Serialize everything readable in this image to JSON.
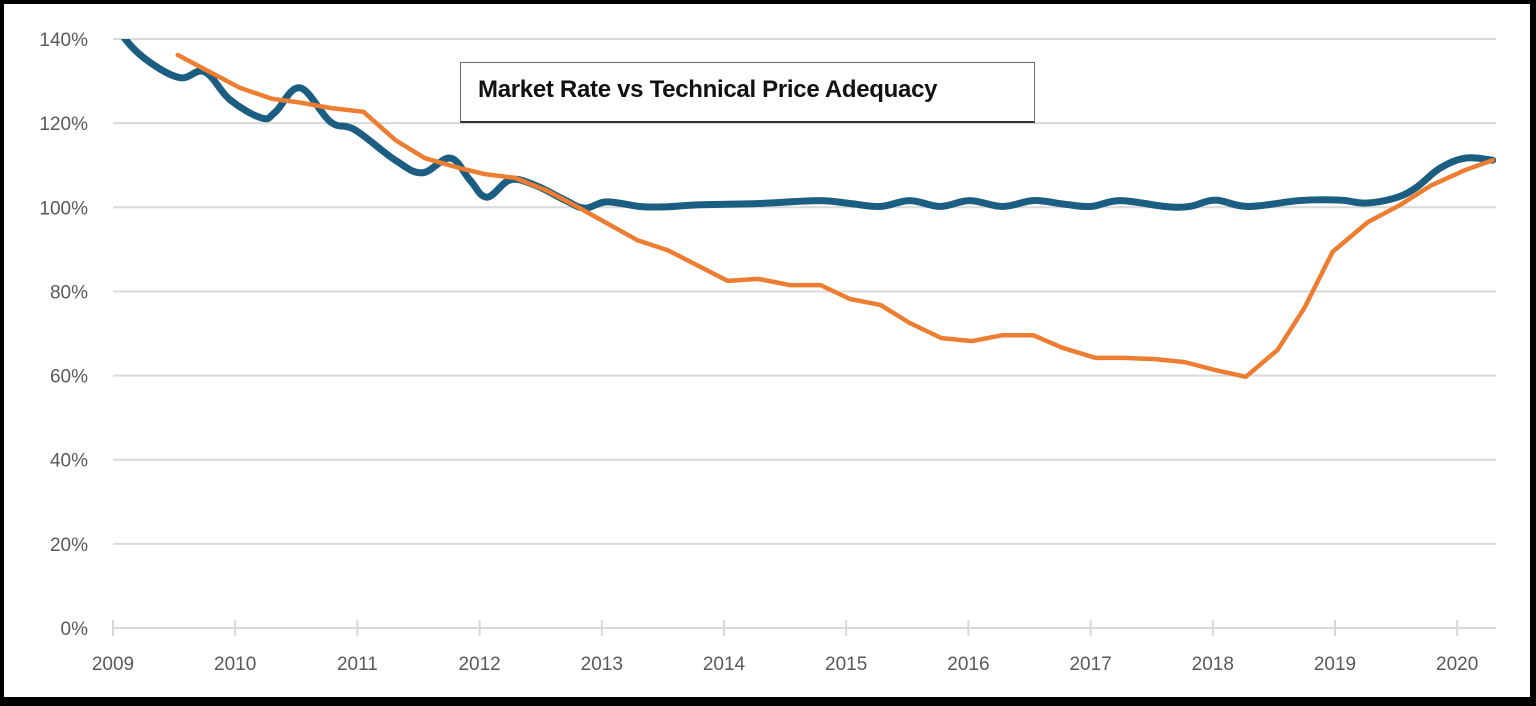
{
  "chart_data": {
    "type": "line",
    "title": "Market Rate vs Technical Price Adequacy",
    "xlabel": "",
    "ylabel": "",
    "xlim": [
      2009,
      2020.33
    ],
    "ylim": [
      0,
      140
    ],
    "x_ticks": [
      "2009",
      "2010",
      "2011",
      "2012",
      "2013",
      "2014",
      "2015",
      "2016",
      "2017",
      "2018",
      "2019",
      "2020"
    ],
    "x_tick_values": [
      2009,
      2010,
      2011,
      2012,
      2013,
      2014,
      2015,
      2016,
      2017,
      2018,
      2019,
      2020
    ],
    "y_ticks": [
      "0%",
      "20%",
      "40%",
      "60%",
      "80%",
      "100%",
      "120%",
      "140%"
    ],
    "y_tick_values": [
      0,
      20,
      40,
      60,
      80,
      100,
      120,
      140
    ],
    "grid": true,
    "legend": "none",
    "series": [
      {
        "name": "Market Rate",
        "color": "#1b5e82",
        "smooth": true,
        "x": [
          2009.0,
          2009.1,
          2009.3,
          2009.55,
          2009.75,
          2009.96,
          2010.22,
          2010.33,
          2010.53,
          2010.78,
          2010.98,
          2011.31,
          2011.53,
          2011.76,
          2011.92,
          2012.06,
          2012.25,
          2012.45,
          2012.7,
          2012.86,
          2013.04,
          2013.31,
          2013.52,
          2013.8,
          2014.29,
          2014.77,
          2015.03,
          2015.28,
          2015.52,
          2015.77,
          2016.01,
          2016.28,
          2016.53,
          2016.77,
          2017.0,
          2017.24,
          2017.61,
          2017.81,
          2018.02,
          2018.29,
          2018.71,
          2019.04,
          2019.25,
          2019.49,
          2019.66,
          2019.86,
          2020.07,
          2020.29
        ],
        "values": [
          146,
          140,
          134.5,
          130.8,
          132.2,
          125.5,
          121.2,
          122.7,
          128.4,
          120.3,
          118.4,
          111.2,
          108.2,
          111.7,
          106.5,
          102.4,
          106.5,
          105.3,
          101.7,
          99.8,
          101.3,
          100.2,
          100.1,
          100.6,
          100.9,
          101.6,
          100.9,
          100.2,
          101.6,
          100.2,
          101.6,
          100.2,
          101.6,
          100.8,
          100.2,
          101.6,
          100.2,
          100.2,
          101.7,
          100.2,
          101.6,
          101.7,
          101.0,
          102.2,
          104.6,
          109.3,
          111.7,
          111.2
        ]
      },
      {
        "name": "Technical Price Adequacy",
        "color": "#ed7d31",
        "smooth": false,
        "x": [
          2009.53,
          2009.79,
          2010.04,
          2010.3,
          2010.53,
          2010.78,
          2011.05,
          2011.31,
          2011.55,
          2011.84,
          2012.04,
          2012.29,
          2012.54,
          2012.82,
          2013.29,
          2013.54,
          2014.03,
          2014.28,
          2014.54,
          2014.79,
          2015.03,
          2015.28,
          2015.52,
          2015.78,
          2016.03,
          2016.28,
          2016.53,
          2016.77,
          2017.04,
          2017.28,
          2017.53,
          2017.77,
          2018.02,
          2018.27,
          2018.53,
          2018.75,
          2018.98,
          2019.27,
          2019.53,
          2019.78,
          2020.07,
          2020.29
        ],
        "values": [
          136.2,
          132.2,
          128.4,
          125.8,
          124.9,
          123.6,
          122.7,
          116.0,
          111.7,
          109.3,
          107.9,
          107.0,
          104.1,
          99.8,
          92.2,
          89.8,
          82.5,
          83.0,
          81.5,
          81.5,
          78.2,
          76.8,
          72.5,
          68.9,
          68.2,
          69.6,
          69.6,
          66.6,
          64.2,
          64.2,
          63.9,
          63.2,
          61.3,
          59.7,
          66.1,
          76.1,
          89.4,
          96.5,
          100.5,
          105.1,
          108.9,
          111.2
        ]
      }
    ]
  }
}
